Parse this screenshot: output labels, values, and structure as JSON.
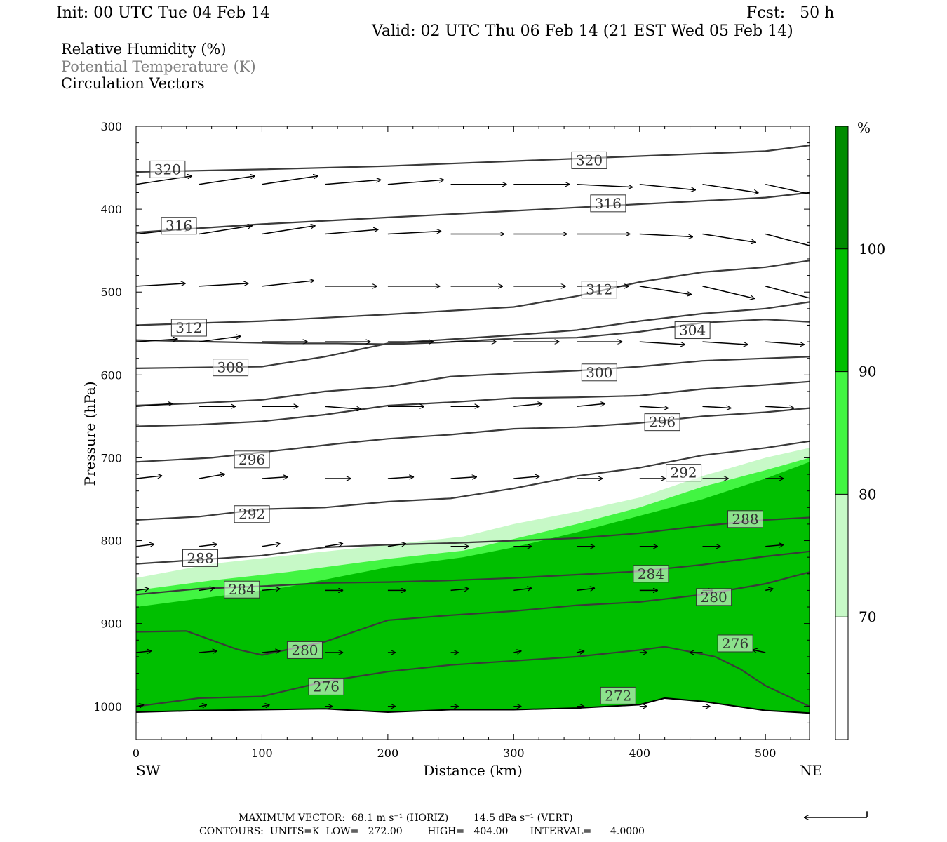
{
  "header": {
    "init": "Init: 00 UTC Tue 04 Feb 14",
    "fcst": "Fcst:   50 h",
    "valid": "Valid: 02 UTC Thu 06 Feb 14 (21 EST Wed 05 Feb 14)"
  },
  "legend_text": {
    "rh": "Relative Humidity (%)",
    "theta": "Potential Temperature (K)",
    "vectors": "Circulation Vectors"
  },
  "colors": {
    "rh_70": "#c7f9c7",
    "rh_80": "#42f542",
    "rh_90": "#00bf00",
    "rh_100": "#008c00",
    "contour": "#3a3a3a",
    "vector": "#000000"
  },
  "chart_data": {
    "type": "cross-section",
    "xlabel": "Distance (km)",
    "ylabel": "Pressure (hPa)",
    "x_end_labels": {
      "left": "SW",
      "right": "NE"
    },
    "xlim": [
      0,
      535
    ],
    "ylim": [
      1040,
      300
    ],
    "x_ticks": [
      0,
      100,
      200,
      300,
      400,
      500
    ],
    "y_ticks": [
      300,
      400,
      500,
      600,
      700,
      800,
      900,
      1000
    ],
    "colorbar": {
      "unit": "%",
      "levels": [
        70,
        80,
        90,
        100
      ],
      "colors": [
        "#ffffff",
        "#c7f9c7",
        "#42f542",
        "#00bf00",
        "#008c00"
      ]
    },
    "rh_fill_tops": {
      "x": [
        0,
        60,
        120,
        200,
        260,
        300,
        350,
        400,
        450,
        500,
        535
      ],
      "rh70": [
        845,
        828,
        818,
        805,
        795,
        780,
        765,
        748,
        722,
        700,
        688
      ],
      "rh80": [
        860,
        848,
        838,
        822,
        812,
        798,
        780,
        760,
        735,
        715,
        700
      ],
      "rh90": [
        880,
        868,
        856,
        832,
        820,
        808,
        790,
        770,
        750,
        725,
        705
      ]
    },
    "rh_fill_bottom": {
      "x": [
        0,
        50,
        100,
        150,
        200,
        250,
        300,
        350,
        400,
        420,
        450,
        500,
        535
      ],
      "p": [
        1007,
        1005,
        1004,
        1003,
        1007,
        1004,
        1004,
        1002,
        998,
        990,
        994,
        1005,
        1008
      ]
    },
    "theta_contours": [
      {
        "value": 320,
        "x": [
          0,
          100,
          200,
          300,
          400,
          500,
          535
        ],
        "p": [
          355,
          352,
          348,
          342,
          336,
          330,
          323
        ]
      },
      {
        "value": 316,
        "x": [
          0,
          100,
          200,
          300,
          400,
          500,
          535
        ],
        "p": [
          428,
          418,
          410,
          402,
          394,
          386,
          380
        ]
      },
      {
        "value": 312,
        "x": [
          0,
          100,
          200,
          300,
          350,
          400,
          450,
          500,
          535
        ],
        "p": [
          540,
          535,
          527,
          518,
          505,
          488,
          476,
          470,
          462
        ]
      },
      {
        "value": 308,
        "x": [
          0,
          100,
          150,
          200,
          250,
          300,
          350,
          400,
          450,
          500,
          535
        ],
        "p": [
          592,
          590,
          578,
          562,
          557,
          552,
          546,
          535,
          526,
          520,
          512
        ]
      },
      {
        "value": 304,
        "x": [
          0,
          60,
          120,
          160,
          200,
          240,
          300,
          350,
          400,
          450,
          500,
          535
        ],
        "p": [
          558,
          560,
          562,
          562,
          563,
          561,
          556,
          555,
          548,
          537,
          533,
          536
        ]
      },
      {
        "value": 300,
        "x": [
          0,
          50,
          100,
          150,
          200,
          250,
          300,
          350,
          400,
          450,
          500,
          535
        ],
        "p": [
          637,
          634,
          630,
          620,
          614,
          602,
          598,
          595,
          590,
          583,
          580,
          578
        ]
      },
      {
        "value": 296,
        "x": [
          0,
          50,
          100,
          150,
          200,
          250,
          300,
          350,
          400,
          450,
          500,
          535
        ],
        "p": [
          662,
          660,
          656,
          648,
          637,
          633,
          628,
          627,
          625,
          617,
          612,
          608
        ]
      },
      {
        "value": 292,
        "x": [
          0,
          60,
          120,
          160,
          200,
          250,
          300,
          350,
          400,
          450,
          500,
          535
        ],
        "p": [
          705,
          700,
          690,
          683,
          677,
          672,
          665,
          663,
          658,
          650,
          645,
          640
        ]
      },
      {
        "value": 288,
        "x": [
          0,
          50,
          100,
          150,
          200,
          250,
          300,
          350,
          400,
          450,
          500,
          535
        ],
        "p": [
          775,
          771,
          762,
          760,
          753,
          749,
          737,
          722,
          712,
          697,
          688,
          680
        ]
      },
      {
        "value": 284,
        "x": [
          0,
          50,
          100,
          150,
          200,
          250,
          300,
          350,
          400,
          450,
          500,
          535
        ],
        "p": [
          828,
          823,
          818,
          808,
          805,
          803,
          800,
          797,
          791,
          782,
          775,
          772
        ]
      },
      {
        "value": 280,
        "x": [
          0,
          50,
          100,
          150,
          200,
          250,
          300,
          350,
          400,
          450,
          500,
          535
        ],
        "p": [
          865,
          858,
          855,
          851,
          850,
          848,
          845,
          841,
          837,
          829,
          819,
          813
        ]
      },
      {
        "value": 276,
        "x": [
          0,
          40,
          80,
          100,
          150,
          200,
          250,
          300,
          350,
          400,
          450,
          500,
          535
        ],
        "p": [
          910,
          909,
          931,
          938,
          922,
          896,
          890,
          885,
          878,
          874,
          865,
          852,
          838
        ]
      },
      {
        "value": 272,
        "x": [
          0,
          50,
          100,
          150,
          200,
          250,
          300,
          350,
          400,
          420,
          460,
          480,
          500,
          535
        ],
        "p": [
          1000,
          990,
          988,
          970,
          958,
          950,
          945,
          940,
          932,
          928,
          940,
          955,
          975,
          1000
        ]
      }
    ],
    "contour_labels": [
      {
        "text": "320",
        "x": 25,
        "p": 352
      },
      {
        "text": "320",
        "x": 360,
        "p": 341
      },
      {
        "text": "316",
        "x": 34,
        "p": 420
      },
      {
        "text": "316",
        "x": 375,
        "p": 393
      },
      {
        "text": "312",
        "x": 42,
        "p": 543
      },
      {
        "text": "312",
        "x": 368,
        "p": 497
      },
      {
        "text": "308",
        "x": 75,
        "p": 591
      },
      {
        "text": "304",
        "x": 442,
        "p": 546
      },
      {
        "text": "300",
        "x": 368,
        "p": 597
      },
      {
        "text": "296",
        "x": 92,
        "p": 702
      },
      {
        "text": "296",
        "x": 418,
        "p": 657
      },
      {
        "text": "292",
        "x": 92,
        "p": 768
      },
      {
        "text": "292",
        "x": 435,
        "p": 718
      },
      {
        "text": "288",
        "x": 51,
        "p": 821
      },
      {
        "text": "288",
        "x": 484,
        "p": 774
      },
      {
        "text": "284",
        "x": 84,
        "p": 859
      },
      {
        "text": "284",
        "x": 409,
        "p": 840
      },
      {
        "text": "280",
        "x": 134,
        "p": 932
      },
      {
        "text": "280",
        "x": 459,
        "p": 868
      },
      {
        "text": "276",
        "x": 151,
        "p": 976
      },
      {
        "text": "276",
        "x": 476,
        "p": 924
      },
      {
        "text": "272",
        "x": 383,
        "p": 987
      }
    ],
    "vectors": {
      "rows": [
        {
          "p": 370,
          "x": [
            0,
            50,
            100,
            150,
            200,
            250,
            300,
            350,
            400,
            450,
            500
          ],
          "u": [
            43,
            43,
            43,
            43,
            43,
            43,
            43,
            43,
            43,
            43,
            43
          ],
          "w": [
            -1.5,
            -1.5,
            -1.5,
            -0.8,
            -0.8,
            0.0,
            0.0,
            0.5,
            1.0,
            1.5,
            2.2
          ]
        },
        {
          "p": 430,
          "x": [
            0,
            50,
            100,
            150,
            200,
            250,
            300,
            350,
            400,
            450,
            500
          ],
          "u": [
            41,
            41,
            41,
            41,
            41,
            41,
            41,
            41,
            41,
            41,
            41
          ],
          "w": [
            -1.0,
            -1.5,
            -1.5,
            -0.8,
            -0.5,
            0.0,
            0.0,
            0.0,
            0.5,
            1.5,
            2.5
          ]
        },
        {
          "p": 493,
          "x": [
            0,
            50,
            100,
            150,
            200,
            250,
            300,
            350,
            400,
            450,
            500
          ],
          "u": [
            38,
            38,
            40,
            40,
            40,
            40,
            40,
            40,
            40,
            40,
            40
          ],
          "w": [
            -0.5,
            -0.5,
            -1.0,
            0.0,
            0.0,
            0.0,
            0.0,
            0.0,
            1.5,
            2.2,
            2.5
          ]
        },
        {
          "p": 560,
          "x": [
            0,
            50,
            100,
            150,
            200,
            250,
            300,
            350,
            400,
            450,
            500
          ],
          "u": [
            32,
            32,
            35,
            35,
            35,
            35,
            35,
            35,
            35,
            35,
            30
          ],
          "w": [
            -0.5,
            -1.0,
            0.0,
            0.0,
            0.0,
            0.0,
            0.0,
            0.0,
            0.5,
            0.5,
            0.5
          ]
        },
        {
          "p": 638,
          "x": [
            0,
            50,
            100,
            150,
            200,
            250,
            300,
            350,
            400,
            450,
            500
          ],
          "u": [
            28,
            28,
            28,
            28,
            28,
            22,
            22,
            22,
            22,
            22,
            22
          ],
          "w": [
            -0.5,
            0.0,
            0.0,
            0.5,
            0.0,
            0.0,
            -0.5,
            -0.5,
            0.3,
            0.3,
            0.3
          ]
        },
        {
          "p": 725,
          "x": [
            0,
            50,
            100,
            150,
            200,
            250,
            300,
            350,
            400,
            450,
            500
          ],
          "u": [
            20,
            20,
            20,
            20,
            20,
            20,
            20,
            20,
            20,
            20,
            14
          ],
          "w": [
            -0.5,
            -0.8,
            -0.3,
            0.0,
            -0.3,
            -0.3,
            -0.4,
            0.0,
            0.0,
            0.0,
            0.0
          ]
        },
        {
          "p": 807,
          "x": [
            0,
            50,
            100,
            150,
            200,
            250,
            300,
            350,
            400,
            450,
            500
          ],
          "u": [
            14,
            14,
            14,
            14,
            14,
            14,
            14,
            14,
            14,
            14,
            14
          ],
          "w": [
            -0.4,
            -0.4,
            -0.5,
            -0.5,
            -0.5,
            0.0,
            0.0,
            0.0,
            0.0,
            0.0,
            -0.3
          ]
        },
        {
          "p": 860,
          "x": [
            0,
            50,
            100,
            150,
            200,
            250,
            300,
            350,
            400,
            450,
            500
          ],
          "u": [
            10,
            12,
            14,
            14,
            14,
            14,
            14,
            14,
            14,
            8,
            6
          ],
          "w": [
            -0.3,
            -0.4,
            -0.3,
            0.0,
            0.0,
            -0.3,
            -0.4,
            -0.4,
            0.0,
            0.0,
            -0.3
          ]
        },
        {
          "p": 935,
          "x": [
            0,
            50,
            100,
            150,
            200,
            250,
            300,
            350,
            400,
            450,
            500
          ],
          "u": [
            12,
            14,
            14,
            14,
            6,
            6,
            6,
            6,
            6,
            -10,
            -10
          ],
          "w": [
            -0.3,
            -0.3,
            -0.3,
            0.0,
            0.0,
            0.0,
            -0.3,
            -0.3,
            0.0,
            0.0,
            -0.5
          ]
        },
        {
          "p": 1000,
          "x": [
            0,
            50,
            100,
            150,
            200,
            250,
            300,
            350,
            400,
            450
          ],
          "u": [
            6,
            6,
            6,
            6,
            6,
            6,
            6,
            6,
            6,
            6
          ],
          "w": [
            -0.3,
            -0.3,
            -0.3,
            0.0,
            0.0,
            0.0,
            0.0,
            0.0,
            0.0,
            0.0
          ]
        }
      ]
    },
    "footer": {
      "line1": "MAXIMUM VECTOR:  68.1 m s⁻¹ (HORIZ)        14.5 dPa s⁻¹ (VERT)",
      "line2": "CONTOURS:  UNITS=K  LOW=   272.00        HIGH=   404.00       INTERVAL=      4.0000"
    },
    "reference_vector": {
      "u": -68.1,
      "w": 14.5
    }
  }
}
